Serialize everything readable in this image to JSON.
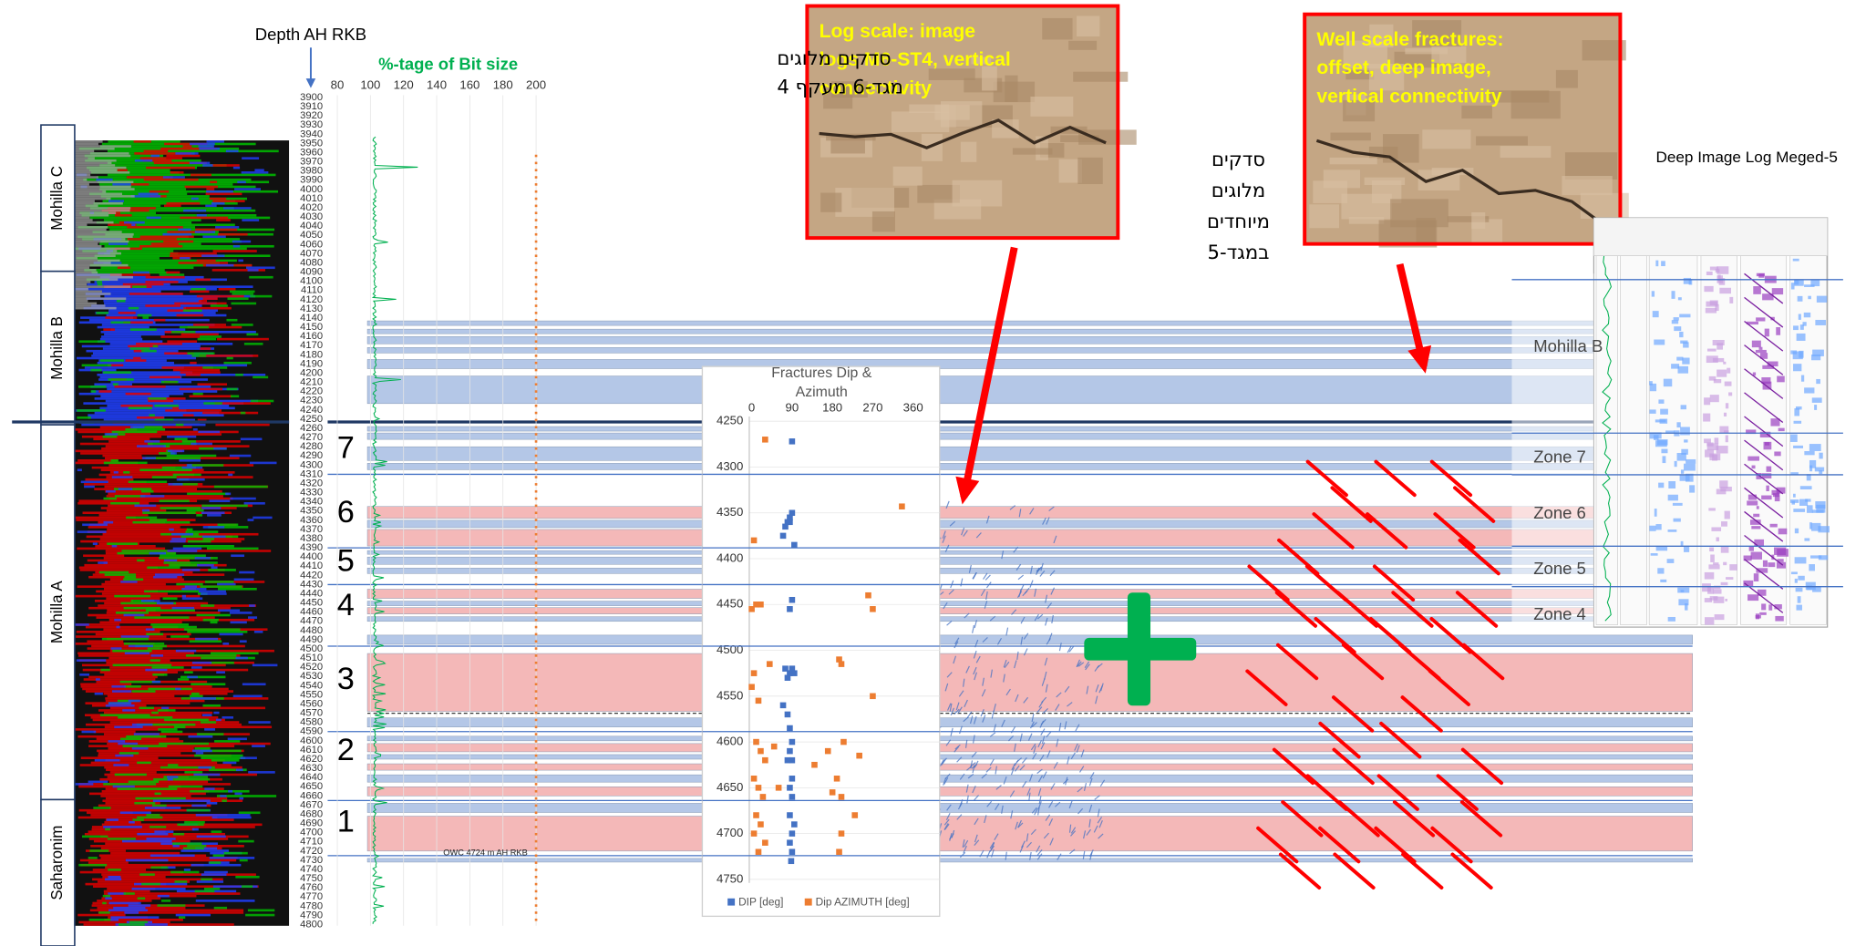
{
  "depth_track": {
    "title": "Depth AH RKB",
    "ticks": [
      3900,
      3910,
      3920,
      3930,
      3940,
      3950,
      3960,
      3970,
      3980,
      3990,
      4000,
      4010,
      4020,
      4030,
      4040,
      4050,
      4060,
      4070,
      4080,
      4090,
      4100,
      4110,
      4120,
      4130,
      4140,
      4150,
      4160,
      4170,
      4180,
      4190,
      4200,
      4210,
      4220,
      4230,
      4240,
      4250,
      4260,
      4270,
      4280,
      4290,
      4300,
      4310,
      4320,
      4330,
      4340,
      4350,
      4360,
      4370,
      4380,
      4390,
      4400,
      4410,
      4420,
      4430,
      4440,
      4450,
      4460,
      4470,
      4480,
      4490,
      4500,
      4510,
      4520,
      4530,
      4540,
      4550,
      4560,
      4570,
      4580,
      4590,
      4600,
      4610,
      4620,
      4630,
      4640,
      4650,
      4660,
      4670,
      4680,
      4690,
      4700,
      4710,
      4720,
      4730,
      4740,
      4750,
      4760,
      4770,
      4780,
      4790,
      4800
    ]
  },
  "bit_size_track": {
    "title": "%-tage of Bit size",
    "ticks": [
      80,
      100,
      120,
      140,
      160,
      180,
      200
    ]
  },
  "formations": [
    "Mohilla C",
    "Mohilla B",
    "Mohilla A",
    "Saharonim"
  ],
  "zones": [
    7,
    6,
    5,
    4,
    3,
    2,
    1
  ],
  "owc_label": "OWC 4724 m AH RKB",
  "notes": {
    "meged6": [
      "סדקים מלוגים",
      "מגד-6 מעקף 4"
    ],
    "meged5": [
      "סדקים",
      "מלוגים",
      "מיוחדים",
      "במגד-5"
    ]
  },
  "photos": [
    {
      "caption": [
        "Log scale:  image",
        "logs M6-ST4, vertical",
        "connectivity"
      ]
    },
    {
      "caption": [
        "Well scale fractures:",
        "offset, deep image,",
        "vertical connectivity"
      ]
    }
  ],
  "deep_log": {
    "title": "Deep Image Log Meged-5",
    "zones": [
      "Mohilla B",
      "Zone 7",
      "Zone 6",
      "Zone 5",
      "Zone 4"
    ]
  },
  "chart_data": {
    "type": "scatter",
    "title": [
      "Fractures Dip &",
      "Azimuth"
    ],
    "xlim": [
      0,
      360
    ],
    "xticks": [
      0,
      90,
      180,
      270,
      360
    ],
    "ylim": [
      4250,
      4750
    ],
    "yticks": [
      4250,
      4300,
      4350,
      4400,
      4450,
      4500,
      4550,
      4600,
      4650,
      4700,
      4750
    ],
    "y_inverted": true,
    "series": [
      {
        "name": "DIP [deg]",
        "color": "#4472c4",
        "x": [
          90,
          80,
          75,
          85,
          90,
          70,
          95,
          85,
          90,
          85,
          75,
          85,
          95,
          80,
          90,
          70,
          80,
          85,
          90,
          85,
          90,
          90,
          85,
          90,
          85,
          90,
          85,
          90,
          80,
          95,
          88
        ],
        "y": [
          4272,
          4360,
          4365,
          4355,
          4350,
          4375,
          4385,
          4360,
          4445,
          4455,
          4520,
          4525,
          4525,
          4530,
          4520,
          4560,
          4570,
          4585,
          4600,
          4610,
          4620,
          4640,
          4650,
          4660,
          4680,
          4700,
          4710,
          4720,
          4620,
          4690,
          4730
        ]
      },
      {
        "name": "Dip AZIMUTH [deg]",
        "color": "#ed7d31",
        "x": [
          30,
          5,
          0,
          10,
          20,
          40,
          5,
          0,
          15,
          10,
          20,
          30,
          5,
          15,
          25,
          10,
          20,
          5,
          30,
          15,
          335,
          260,
          270,
          195,
          200,
          270,
          205,
          170,
          240,
          140,
          190,
          180,
          200,
          230,
          200,
          195,
          50,
          60
        ],
        "y": [
          4270,
          4380,
          4455,
          4450,
          4450,
          4515,
          4525,
          4540,
          4555,
          4600,
          4610,
          4620,
          4640,
          4650,
          4660,
          4680,
          4690,
          4700,
          4710,
          4720,
          4343,
          4440,
          4455,
          4510,
          4515,
          4550,
          4600,
          4610,
          4615,
          4625,
          4640,
          4655,
          4660,
          4680,
          4700,
          4720,
          4605,
          4650
        ]
      }
    ]
  }
}
